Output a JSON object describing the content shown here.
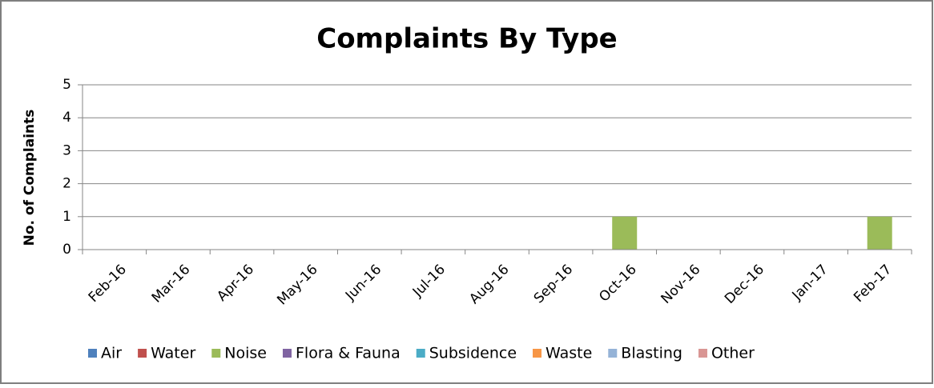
{
  "chart_data": {
    "type": "bar",
    "stacked": true,
    "title": "Complaints By Type",
    "y_label": "No. of Complaints",
    "categories": [
      "Feb-16",
      "Mar-16",
      "Apr-16",
      "May-16",
      "Jun-16",
      "Jul-16",
      "Aug-16",
      "Sep-16",
      "Oct-16",
      "Nov-16",
      "Dec-16",
      "Jan-17",
      "Feb-17"
    ],
    "series": [
      {
        "name": "Air",
        "color": "#4f81bd",
        "values": [
          0,
          0,
          0,
          0,
          0,
          0,
          0,
          0,
          0,
          0,
          0,
          0,
          0
        ]
      },
      {
        "name": "Water",
        "color": "#c0504d",
        "values": [
          0,
          0,
          0,
          0,
          0,
          0,
          0,
          0,
          0,
          0,
          0,
          0,
          0
        ]
      },
      {
        "name": "Noise",
        "color": "#9bbb59",
        "values": [
          0,
          0,
          0,
          0,
          0,
          0,
          0,
          0,
          1,
          0,
          0,
          0,
          1
        ]
      },
      {
        "name": "Flora & Fauna",
        "color": "#8064a2",
        "values": [
          0,
          0,
          0,
          0,
          0,
          0,
          0,
          0,
          0,
          0,
          0,
          0,
          0
        ]
      },
      {
        "name": "Subsidence",
        "color": "#4bacc6",
        "values": [
          0,
          0,
          0,
          0,
          0,
          0,
          0,
          0,
          0,
          0,
          0,
          0,
          0
        ]
      },
      {
        "name": "Waste",
        "color": "#f79646",
        "values": [
          0,
          0,
          0,
          0,
          0,
          0,
          0,
          0,
          0,
          0,
          0,
          0,
          0
        ]
      },
      {
        "name": "Blasting",
        "color": "#95b3d7",
        "values": [
          0,
          0,
          0,
          0,
          0,
          0,
          0,
          0,
          0,
          0,
          0,
          0,
          0
        ]
      },
      {
        "name": "Other",
        "color": "#d99694",
        "values": [
          0,
          0,
          0,
          0,
          0,
          0,
          0,
          0,
          0,
          0,
          0,
          0,
          0
        ]
      }
    ],
    "ylim": [
      0,
      5
    ],
    "yticks": [
      0,
      1,
      2,
      3,
      4,
      5
    ],
    "grid": true,
    "legend": "bottom"
  }
}
